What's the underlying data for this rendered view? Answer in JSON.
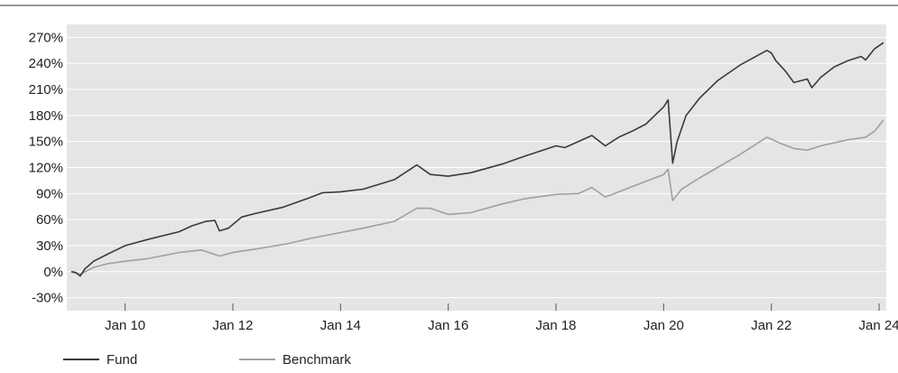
{
  "chart_data": {
    "type": "line",
    "title": "",
    "xlabel": "",
    "ylabel": "",
    "x_tick_labels": [
      "Jan 10",
      "Jan 12",
      "Jan 14",
      "Jan 16",
      "Jan 18",
      "Jan 20",
      "Jan 22",
      "Jan 24"
    ],
    "x_ticks": [
      "2010-01",
      "2012-01",
      "2014-01",
      "2016-01",
      "2018-01",
      "2020-01",
      "2022-01",
      "2024-01"
    ],
    "x_range": [
      "2008-12",
      "2024-02"
    ],
    "y_ticks": [
      -30,
      0,
      30,
      60,
      90,
      120,
      150,
      180,
      210,
      240,
      270
    ],
    "y_tick_labels": [
      "-30%",
      "0%",
      "30%",
      "60%",
      "90%",
      "120%",
      "150%",
      "180%",
      "210%",
      "240%",
      "270%"
    ],
    "ylim": [
      -45,
      285
    ],
    "grid": "horizontal",
    "legend_position": "bottom-left",
    "background_color": "#e5e5e5",
    "series": [
      {
        "name": "Fund",
        "color": "#3a3a3a",
        "points": [
          [
            "2009-01",
            0
          ],
          [
            "2009-02",
            -1
          ],
          [
            "2009-03",
            -5
          ],
          [
            "2009-04",
            3
          ],
          [
            "2009-06",
            12
          ],
          [
            "2009-09",
            20
          ],
          [
            "2010-01",
            30
          ],
          [
            "2010-06",
            37
          ],
          [
            "2011-01",
            46
          ],
          [
            "2011-04",
            53
          ],
          [
            "2011-07",
            58
          ],
          [
            "2011-09",
            59
          ],
          [
            "2011-10",
            47
          ],
          [
            "2011-12",
            50
          ],
          [
            "2012-03",
            63
          ],
          [
            "2012-06",
            67
          ],
          [
            "2012-12",
            74
          ],
          [
            "2013-06",
            85
          ],
          [
            "2013-09",
            91
          ],
          [
            "2014-01",
            92
          ],
          [
            "2014-06",
            95
          ],
          [
            "2015-01",
            106
          ],
          [
            "2015-06",
            123
          ],
          [
            "2015-09",
            112
          ],
          [
            "2016-01",
            110
          ],
          [
            "2016-06",
            114
          ],
          [
            "2017-01",
            124
          ],
          [
            "2017-06",
            133
          ],
          [
            "2018-01",
            145
          ],
          [
            "2018-03",
            143
          ],
          [
            "2018-09",
            157
          ],
          [
            "2018-12",
            145
          ],
          [
            "2019-03",
            155
          ],
          [
            "2019-06",
            162
          ],
          [
            "2019-09",
            170
          ],
          [
            "2020-01",
            190
          ],
          [
            "2020-02",
            198
          ],
          [
            "2020-03",
            125
          ],
          [
            "2020-04",
            150
          ],
          [
            "2020-05",
            165
          ],
          [
            "2020-06",
            180
          ],
          [
            "2020-09",
            200
          ],
          [
            "2021-01",
            220
          ],
          [
            "2021-06",
            238
          ],
          [
            "2021-12",
            255
          ],
          [
            "2022-01",
            252
          ],
          [
            "2022-02",
            243
          ],
          [
            "2022-04",
            232
          ],
          [
            "2022-06",
            218
          ],
          [
            "2022-09",
            222
          ],
          [
            "2022-10",
            212
          ],
          [
            "2022-12",
            224
          ],
          [
            "2023-03",
            236
          ],
          [
            "2023-06",
            243
          ],
          [
            "2023-09",
            248
          ],
          [
            "2023-10",
            244
          ],
          [
            "2023-12",
            257
          ],
          [
            "2024-02",
            264
          ]
        ]
      },
      {
        "name": "Benchmark",
        "color": "#a0a0a0",
        "points": [
          [
            "2009-01",
            0
          ],
          [
            "2009-03",
            -3
          ],
          [
            "2009-06",
            5
          ],
          [
            "2009-09",
            9
          ],
          [
            "2010-01",
            12
          ],
          [
            "2010-06",
            15
          ],
          [
            "2011-01",
            22
          ],
          [
            "2011-06",
            25
          ],
          [
            "2011-10",
            18
          ],
          [
            "2012-01",
            22
          ],
          [
            "2012-06",
            26
          ],
          [
            "2013-01",
            32
          ],
          [
            "2013-06",
            38
          ],
          [
            "2014-01",
            45
          ],
          [
            "2014-06",
            50
          ],
          [
            "2015-01",
            58
          ],
          [
            "2015-06",
            73
          ],
          [
            "2015-09",
            73
          ],
          [
            "2016-01",
            66
          ],
          [
            "2016-06",
            68
          ],
          [
            "2017-01",
            78
          ],
          [
            "2017-06",
            84
          ],
          [
            "2018-01",
            89
          ],
          [
            "2018-06",
            90
          ],
          [
            "2018-09",
            97
          ],
          [
            "2018-12",
            86
          ],
          [
            "2019-06",
            98
          ],
          [
            "2020-01",
            112
          ],
          [
            "2020-02",
            118
          ],
          [
            "2020-03",
            82
          ],
          [
            "2020-05",
            95
          ],
          [
            "2020-09",
            108
          ],
          [
            "2021-01",
            120
          ],
          [
            "2021-06",
            135
          ],
          [
            "2021-12",
            155
          ],
          [
            "2022-03",
            148
          ],
          [
            "2022-06",
            142
          ],
          [
            "2022-09",
            140
          ],
          [
            "2022-12",
            145
          ],
          [
            "2023-06",
            152
          ],
          [
            "2023-10",
            155
          ],
          [
            "2023-12",
            162
          ],
          [
            "2024-02",
            175
          ]
        ]
      }
    ]
  }
}
